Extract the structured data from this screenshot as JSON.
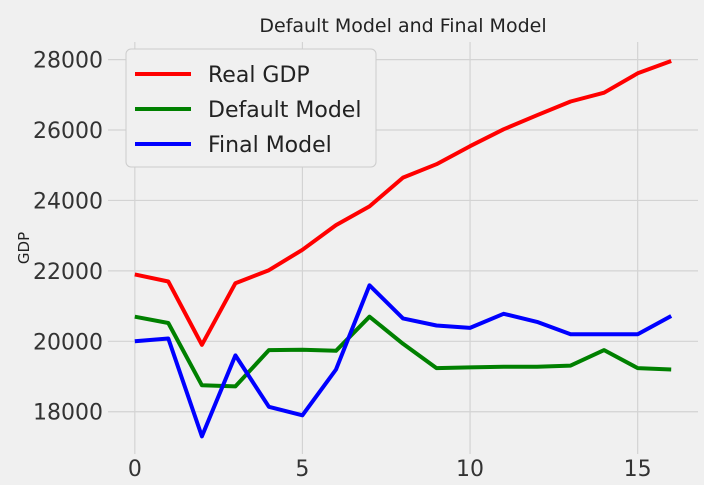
{
  "chart_data": {
    "type": "line",
    "title": "Default Model and Final Model",
    "xlabel": "",
    "ylabel": "GDP",
    "xlim": [
      -0.8,
      16.8
    ],
    "ylim": [
      16800,
      28500
    ],
    "x_ticks": [
      0,
      5,
      10,
      15
    ],
    "y_ticks": [
      18000,
      20000,
      22000,
      24000,
      26000,
      28000
    ],
    "grid": true,
    "legend_position": "upper-left",
    "x": [
      0,
      1,
      2,
      3,
      4,
      5,
      6,
      7,
      8,
      9,
      10,
      11,
      12,
      13,
      14,
      15,
      16
    ],
    "series": [
      {
        "name": "Real GDP",
        "color": "#ff0000",
        "values": [
          21900,
          21700,
          19900,
          21650,
          22020,
          22600,
          23300,
          23830,
          24650,
          25030,
          25540,
          26020,
          26420,
          26810,
          27060,
          27610,
          27960
        ]
      },
      {
        "name": "Default Model",
        "color": "#008000",
        "values": [
          20700,
          20520,
          18750,
          18720,
          19750,
          19760,
          19730,
          20700,
          19930,
          19240,
          19260,
          19280,
          19280,
          19310,
          19750,
          19240,
          19200
        ]
      },
      {
        "name": "Final Model",
        "color": "#0000ff",
        "values": [
          20000,
          20080,
          17300,
          19600,
          18140,
          17900,
          19200,
          21590,
          20650,
          20450,
          20380,
          20780,
          20550,
          20200,
          20200,
          20200,
          20720
        ]
      }
    ]
  }
}
